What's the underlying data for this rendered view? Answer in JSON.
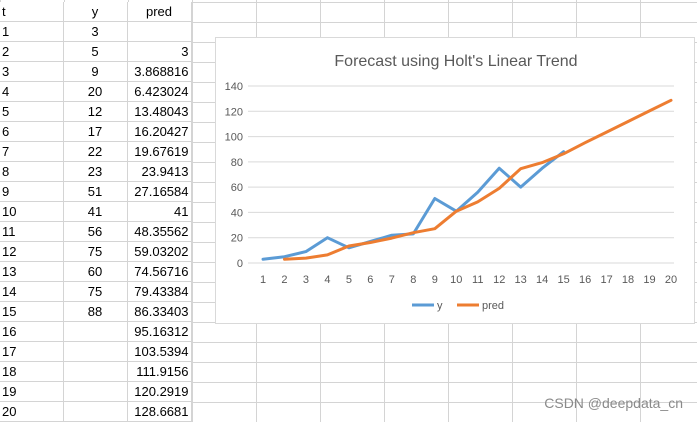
{
  "sheet": {
    "headers": [
      "t",
      "y",
      "pred"
    ],
    "rows": [
      [
        "1",
        "3",
        ""
      ],
      [
        "2",
        "5",
        "3"
      ],
      [
        "3",
        "9",
        "3.868816"
      ],
      [
        "4",
        "20",
        "6.423024"
      ],
      [
        "5",
        "12",
        "13.48043"
      ],
      [
        "6",
        "17",
        "16.20427"
      ],
      [
        "7",
        "22",
        "19.67619"
      ],
      [
        "8",
        "23",
        "23.9413"
      ],
      [
        "9",
        "51",
        "27.16584"
      ],
      [
        "10",
        "41",
        "41"
      ],
      [
        "11",
        "56",
        "48.35562"
      ],
      [
        "12",
        "75",
        "59.03202"
      ],
      [
        "13",
        "60",
        "74.56716"
      ],
      [
        "14",
        "75",
        "79.43384"
      ],
      [
        "15",
        "88",
        "86.33403"
      ],
      [
        "16",
        "",
        "95.16312"
      ],
      [
        "17",
        "",
        "103.5394"
      ],
      [
        "18",
        "",
        "111.9156"
      ],
      [
        "19",
        "",
        "120.2919"
      ],
      [
        "20",
        "",
        "128.6681"
      ]
    ]
  },
  "chart_data": {
    "type": "line",
    "title": "Forecast using Holt's Linear Trend",
    "categories": [
      "1",
      "2",
      "3",
      "4",
      "5",
      "6",
      "7",
      "8",
      "9",
      "10",
      "11",
      "12",
      "13",
      "14",
      "15",
      "16",
      "17",
      "18",
      "19",
      "20"
    ],
    "ylim": [
      0,
      140
    ],
    "yticks": [
      "0",
      "20",
      "40",
      "60",
      "80",
      "100",
      "120",
      "140"
    ],
    "grid": true,
    "legend": "bottom",
    "series": [
      {
        "name": "y",
        "color": "#5b9bd5",
        "values": [
          3,
          5,
          9,
          20,
          12,
          17,
          22,
          23,
          51,
          41,
          56,
          75,
          60,
          75,
          88,
          null,
          null,
          null,
          null,
          null
        ]
      },
      {
        "name": "pred",
        "color": "#ed7d31",
        "values": [
          null,
          3,
          3.868816,
          6.423024,
          13.48043,
          16.20427,
          19.67619,
          23.9413,
          27.16584,
          41,
          48.35562,
          59.03202,
          74.56716,
          79.43384,
          86.33403,
          95.16312,
          103.5394,
          111.9156,
          120.2919,
          128.6681
        ]
      }
    ]
  },
  "watermark": "CSDN @deepdata_cn"
}
